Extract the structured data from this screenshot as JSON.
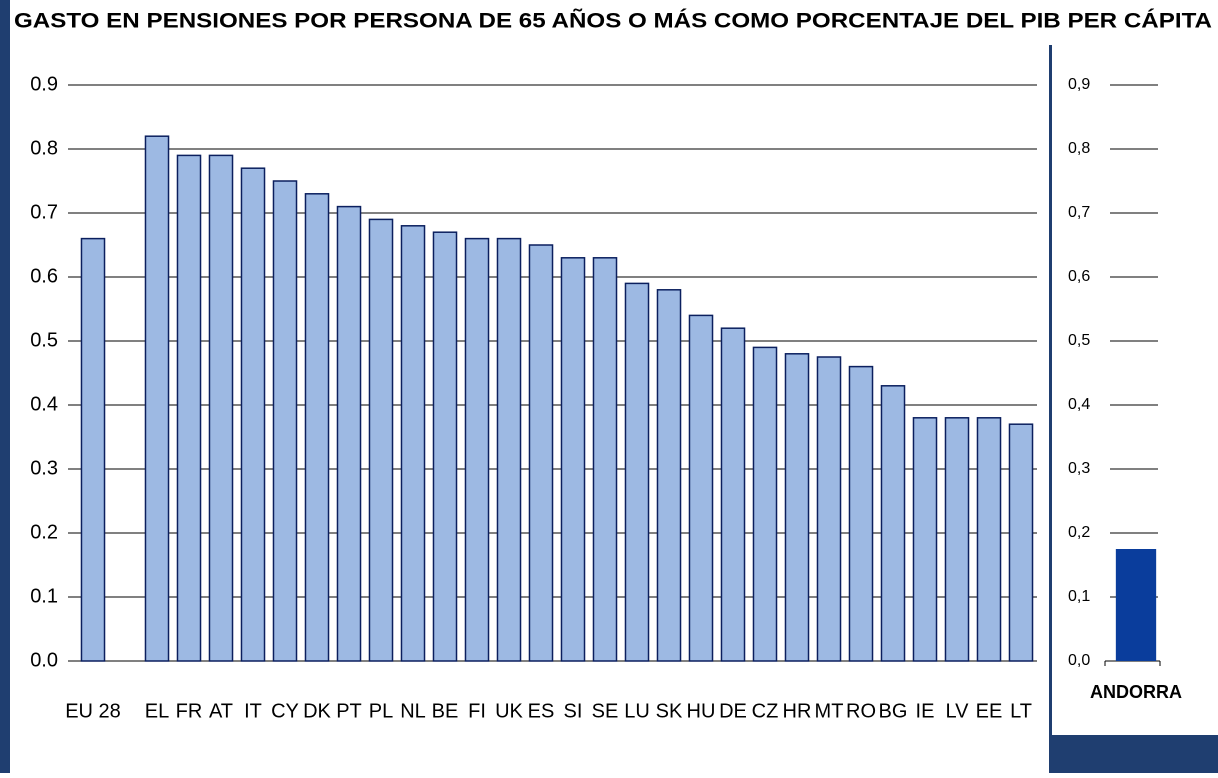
{
  "chart_data": [
    {
      "type": "bar",
      "title": "GASTO EN PENSIONES POR PERSONA DE 65 AÑOS O MÁS COMO PORCENTAJE DEL PIB PER CÁPITA",
      "categories": [
        "EU 28",
        null,
        "EL",
        "FR",
        "AT",
        "IT",
        "CY",
        "DK",
        "PT",
        "PL",
        "NL",
        "BE",
        "FI",
        "UK",
        "ES",
        "SI",
        "SE",
        "LU",
        "SK",
        "HU",
        "DE",
        "CZ",
        "HR",
        "MT",
        "RO",
        "BG",
        "IE",
        "LV",
        "EE",
        "LT"
      ],
      "values": [
        0.66,
        null,
        0.82,
        0.79,
        0.79,
        0.77,
        0.75,
        0.73,
        0.71,
        0.69,
        0.68,
        0.67,
        0.66,
        0.66,
        0.65,
        0.63,
        0.63,
        0.59,
        0.58,
        0.54,
        0.52,
        0.49,
        0.48,
        0.475,
        0.46,
        0.43,
        0.38,
        0.38,
        0.38,
        0.37
      ],
      "color": "#9db9e3",
      "ylim": [
        0,
        0.9
      ],
      "yticks": [
        {
          "value": 0,
          "label": "0.0"
        },
        0.1,
        0.2,
        0.3,
        0.4,
        0.5,
        0.6,
        0.7,
        0.8,
        0.9
      ],
      "grid": true
    },
    {
      "type": "bar",
      "categories": [
        "ANDORRA"
      ],
      "values": [
        0.175
      ],
      "color": "#0a3d9c",
      "ylim": [
        0,
        0.9
      ],
      "yticks": [
        {
          "value": 0,
          "label": "0,0"
        },
        {
          "value": 0.1,
          "label": "0,1"
        },
        {
          "value": 0.2,
          "label": "0,2"
        },
        {
          "value": 0.3,
          "label": "0,3"
        },
        {
          "value": 0.4,
          "label": "0,4"
        },
        {
          "value": 0.5,
          "label": "0,5"
        },
        {
          "value": 0.6,
          "label": "0,6"
        },
        {
          "value": 0.7,
          "label": "0,7"
        },
        {
          "value": 0.8,
          "label": "0,8"
        },
        {
          "value": 0.9,
          "label": "0,9"
        }
      ],
      "grid": false
    }
  ]
}
